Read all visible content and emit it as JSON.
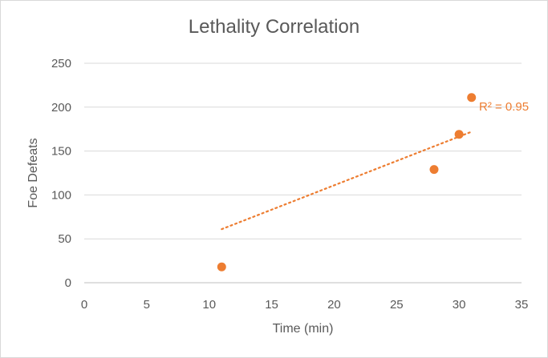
{
  "chart_data": {
    "type": "scatter",
    "title": "Lethality Correlation",
    "xlabel": "Time (min)",
    "ylabel": "Foe Defeats",
    "xlim": [
      0,
      35
    ],
    "ylim": [
      0,
      250
    ],
    "xticks": [
      0,
      5,
      10,
      15,
      20,
      25,
      30,
      35
    ],
    "yticks": [
      0,
      50,
      100,
      150,
      200,
      250
    ],
    "grid": "horizontal",
    "legend": "none",
    "series": [
      {
        "x": [
          11,
          28,
          30,
          31
        ],
        "y": [
          18,
          129,
          169,
          211
        ],
        "color": "#ED7D31"
      }
    ],
    "trendline": {
      "style": "dotted",
      "color": "#ED7D31",
      "x_range": [
        11,
        31
      ],
      "y_range": [
        61,
        172
      ],
      "r_squared_label": "R² = 0.95"
    }
  }
}
